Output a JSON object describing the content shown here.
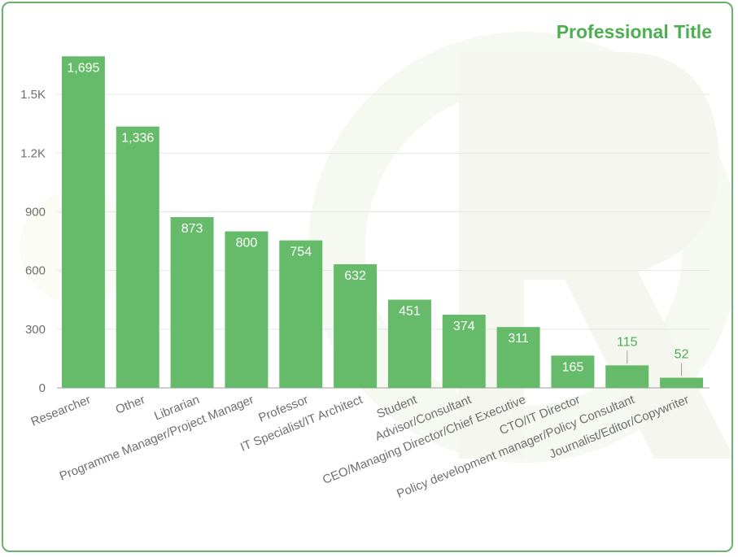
{
  "colors": {
    "bar": "#66bb6a",
    "title": "#4caf50",
    "border": "#6ab26c",
    "grid": "#e6e6e6"
  },
  "chart_data": {
    "type": "bar",
    "title": "Professional Title",
    "categories": [
      "Researcher",
      "Other",
      "Librarian",
      "Programme Manager/Project Manager",
      "Professor",
      "IT Specialist/IT Architect",
      "Student",
      "Advisor/Consultant",
      "CEO/Managing Director/Chief Executive",
      "CTO/IT Director",
      "Policy development manager/Policy Consultant",
      "Journalist/Editor/Copywriter"
    ],
    "values": [
      1695,
      1336,
      873,
      800,
      754,
      632,
      451,
      374,
      311,
      165,
      115,
      52
    ],
    "value_labels": [
      "1,695",
      "1,336",
      "873",
      "800",
      "754",
      "632",
      "451",
      "374",
      "311",
      "165",
      "115",
      "52"
    ],
    "y_ticks": [
      0,
      300,
      600,
      900,
      1200,
      1500
    ],
    "y_tick_labels": [
      "0",
      "300",
      "600",
      "900",
      "1.2K",
      "1.5K"
    ],
    "ylim": [
      0,
      1800
    ],
    "grid": true,
    "xlabel": "",
    "ylabel": ""
  }
}
